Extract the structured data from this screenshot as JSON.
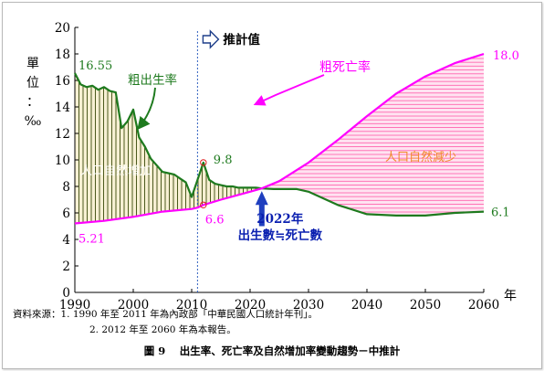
{
  "chart_data": {
    "type": "line",
    "ylabel": "單位：‰",
    "xunit": "年",
    "ylim": [
      0,
      20
    ],
    "yticks": [
      0,
      2,
      4,
      6,
      8,
      10,
      12,
      14,
      16,
      18,
      20
    ],
    "xlim": [
      1990,
      2060
    ],
    "xticks": [
      1990,
      2000,
      2010,
      2020,
      2030,
      2040,
      2050,
      2060
    ],
    "grid": false,
    "projection_start": 2011,
    "projection_label": "推計值",
    "crossover_year": 2022,
    "crossover_label_1": "2022年",
    "crossover_label_2": "出生數≒死亡數",
    "series": [
      {
        "name": "粗出生率",
        "color": "#1e7a1e",
        "x": [
          1990,
          1991,
          1992,
          1993,
          1994,
          1995,
          1996,
          1997,
          1998,
          1999,
          2000,
          2001,
          2002,
          2003,
          2004,
          2005,
          2006,
          2007,
          2008,
          2009,
          2010,
          2011,
          2012,
          2013,
          2014,
          2015,
          2016,
          2017,
          2018,
          2019,
          2020,
          2021,
          2022,
          2024,
          2026,
          2028,
          2030,
          2035,
          2040,
          2045,
          2050,
          2055,
          2060
        ],
        "values": [
          16.55,
          15.7,
          15.5,
          15.6,
          15.3,
          15.5,
          15.2,
          15.1,
          12.4,
          12.9,
          13.8,
          11.7,
          11.0,
          10.1,
          9.6,
          9.1,
          9.0,
          8.9,
          8.6,
          8.3,
          7.2,
          8.5,
          9.8,
          8.5,
          8.2,
          8.1,
          8.0,
          8.0,
          7.9,
          7.9,
          7.9,
          7.9,
          7.85,
          7.8,
          7.8,
          7.8,
          7.6,
          6.6,
          5.9,
          5.8,
          5.8,
          6.0,
          6.1
        ],
        "labels": [
          {
            "text": "16.55",
            "x": 1990,
            "y": 16.55
          },
          {
            "text": "9.8",
            "x": 2012,
            "y": 9.8
          },
          {
            "text": "6.1",
            "x": 2060,
            "y": 6.1
          }
        ]
      },
      {
        "name": "粗死亡率",
        "color": "#ff00ff",
        "x": [
          1990,
          1995,
          2000,
          2005,
          2010,
          2011,
          2012,
          2015,
          2020,
          2022,
          2025,
          2030,
          2035,
          2040,
          2045,
          2050,
          2055,
          2060
        ],
        "values": [
          5.21,
          5.4,
          5.7,
          6.1,
          6.3,
          6.4,
          6.6,
          7.0,
          7.6,
          7.85,
          8.4,
          9.8,
          11.5,
          13.3,
          15.0,
          16.3,
          17.3,
          18.0
        ],
        "labels": [
          {
            "text": "5.21",
            "x": 1990,
            "y": 5.21
          },
          {
            "text": "6.6",
            "x": 2012,
            "y": 6.6
          },
          {
            "text": "18.0",
            "x": 2060,
            "y": 18.0
          }
        ]
      }
    ],
    "annotations": {
      "increase_label": "人口自然增加",
      "decrease_label": "人口自然減少"
    }
  },
  "source": {
    "prefix": "資料來源：",
    "line1": "1. 1990 年至 2011 年為內政部「中華民國人口統計年刊」。",
    "line2": "2. 2012 年至 2060 年為本報告。"
  },
  "caption": "圖 9　 出生率、死亡率及自然增加率變動趨勢－中推計"
}
